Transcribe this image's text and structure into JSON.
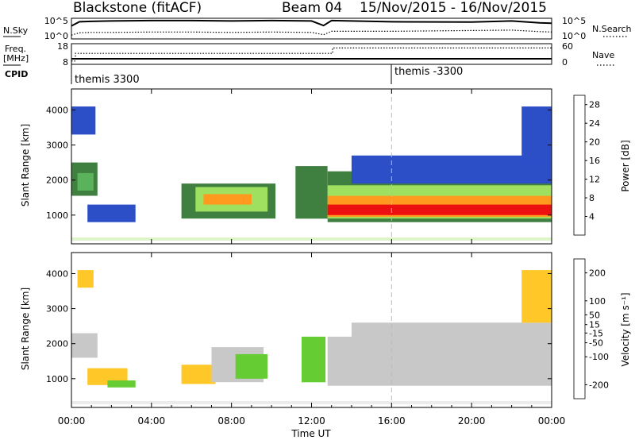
{
  "header": {
    "station": "Blackstone (fitACF)",
    "beam": "Beam 04",
    "dates": "15/Nov/2015 - 16/Nov/2015"
  },
  "labels": {
    "nsky": "N.Sky",
    "nsearch": "N.Search",
    "freq": "Freq.",
    "freq_unit": "[MHz]",
    "nave": "Nave",
    "cpid": "CPID",
    "xlabel": "Time UT",
    "ylabel": "Slant Range [km]",
    "power_label": "Power [dB]",
    "velocity_label": "Velocity [m s⁻¹]"
  },
  "noise_axis": {
    "left_ticks": [
      "10^5",
      "10^0"
    ],
    "right_ticks": [
      "10^5",
      "10^0"
    ]
  },
  "freq_axis": {
    "left_ticks": [
      "18",
      "8"
    ],
    "right_ticks": [
      "60",
      "0"
    ]
  },
  "cpid_segments": [
    {
      "label": "themis 3300",
      "start_hour": 0
    },
    {
      "label": "themis -3300",
      "start_hour": 16
    }
  ],
  "chart_data": [
    {
      "type": "line",
      "name": "noise",
      "x": [
        0,
        0.4,
        1,
        2,
        4,
        6,
        8,
        10,
        12,
        12.6,
        13,
        16,
        20,
        22,
        23.4,
        24
      ],
      "sky_log10": [
        3.2,
        4.3,
        4.4,
        4.5,
        4.6,
        4.6,
        4.5,
        4.6,
        4.5,
        3.3,
        4.6,
        4.3,
        4.2,
        4.5,
        4.0,
        3.9
      ],
      "search_log10": [
        0.8,
        1.4,
        1.5,
        1.5,
        1.6,
        1.6,
        1.5,
        1.6,
        1.5,
        0.9,
        1.8,
        1.8,
        2.0,
        2.1,
        1.7,
        1.6
      ],
      "ylim": [
        0,
        5
      ]
    },
    {
      "type": "line",
      "name": "freq-nave",
      "x": [
        0,
        0.2,
        13,
        13.05,
        24
      ],
      "freq_mhz": [
        10.5,
        10.5,
        10.5,
        10.5,
        10.5
      ],
      "nave": [
        8,
        32,
        32,
        49,
        49
      ],
      "freq_ylim": [
        8,
        18
      ],
      "nave_ylim": [
        0,
        60
      ]
    },
    {
      "type": "heatmap",
      "name": "power",
      "xlabel": "Time UT",
      "ylabel": "Slant Range [km]",
      "xlim": [
        0,
        24
      ],
      "ylim": [
        180,
        4600
      ],
      "x_ticks": [
        "00:00",
        "04:00",
        "08:00",
        "12:00",
        "16:00",
        "20:00",
        "00:00"
      ],
      "y_ticks": [
        1000,
        2000,
        3000,
        4000
      ],
      "colorbar": {
        "label": "Power [dB]",
        "ticks": [
          4,
          8,
          12,
          16,
          20,
          24,
          28
        ],
        "range": [
          0,
          30
        ],
        "colors": [
          "#0000ff",
          "#2c4fc8",
          "#3f7f3f",
          "#5ab25a",
          "#a0e060",
          "#ffd21e",
          "#ff9a1e",
          "#ff6010",
          "#ee1010"
        ]
      },
      "regions": [
        {
          "t0": 0.0,
          "t1": 1.3,
          "r0": 1550,
          "r1": 2500,
          "value": 8
        },
        {
          "t0": 0.3,
          "t1": 1.1,
          "r0": 1700,
          "r1": 2200,
          "value": 13
        },
        {
          "t0": 0.0,
          "t1": 1.2,
          "r0": 3300,
          "r1": 4100,
          "value": 5
        },
        {
          "t0": 0.8,
          "t1": 3.2,
          "r0": 800,
          "r1": 1300,
          "value": 5
        },
        {
          "t0": 5.5,
          "t1": 10.2,
          "r0": 900,
          "r1": 1900,
          "value": 7
        },
        {
          "t0": 6.2,
          "t1": 9.8,
          "r0": 1100,
          "r1": 1800,
          "value": 14
        },
        {
          "t0": 6.6,
          "t1": 9.0,
          "r0": 1300,
          "r1": 1600,
          "value": 20
        },
        {
          "t0": 11.2,
          "t1": 12.8,
          "r0": 900,
          "r1": 2400,
          "value": 8
        },
        {
          "t0": 12.8,
          "t1": 24.0,
          "r0": 800,
          "r1": 2250,
          "value": 9
        },
        {
          "t0": 12.8,
          "t1": 24.0,
          "r0": 900,
          "r1": 1850,
          "value": 15
        },
        {
          "t0": 12.8,
          "t1": 24.0,
          "r0": 950,
          "r1": 1550,
          "value": 21
        },
        {
          "t0": 12.8,
          "t1": 24.0,
          "r0": 1000,
          "r1": 1300,
          "value": 27
        },
        {
          "t0": 14.0,
          "t1": 24.0,
          "r0": 1900,
          "r1": 2700,
          "value": 6
        },
        {
          "t0": 22.5,
          "t1": 24.0,
          "r0": 2600,
          "r1": 4100,
          "value": 6
        }
      ]
    },
    {
      "type": "heatmap",
      "name": "velocity",
      "xlabel": "Time UT",
      "ylabel": "Slant Range [km]",
      "xlim": [
        0,
        24
      ],
      "ylim": [
        180,
        4600
      ],
      "x_ticks": [
        "00:00",
        "04:00",
        "08:00",
        "12:00",
        "16:00",
        "20:00",
        "00:00"
      ],
      "y_ticks": [
        1000,
        2000,
        3000,
        4000
      ],
      "colorbar": {
        "label": "Velocity [m s⁻¹]",
        "ticks": [
          200,
          100,
          50,
          15,
          -15,
          -50,
          -100,
          -200
        ],
        "range": [
          -250,
          250
        ],
        "colors": [
          "#ee1010",
          "#ff6010",
          "#ff9a1e",
          "#ffc828",
          "#c8c8c8",
          "#66cc33",
          "#2f8f4f",
          "#2c4fc8",
          "#1a2fb0"
        ]
      },
      "regions": [
        {
          "t0": 0.0,
          "t1": 1.3,
          "r0": 1600,
          "r1": 2300,
          "value": 0
        },
        {
          "t0": 0.3,
          "t1": 1.1,
          "r0": 3600,
          "r1": 4100,
          "value": -60
        },
        {
          "t0": 0.8,
          "t1": 2.8,
          "r0": 820,
          "r1": 1300,
          "value": -70
        },
        {
          "t0": 1.8,
          "t1": 3.2,
          "r0": 750,
          "r1": 950,
          "value": 30
        },
        {
          "t0": 5.5,
          "t1": 7.2,
          "r0": 850,
          "r1": 1400,
          "value": -80
        },
        {
          "t0": 7.0,
          "t1": 9.6,
          "r0": 900,
          "r1": 1900,
          "value": 0
        },
        {
          "t0": 8.2,
          "t1": 9.8,
          "r0": 1000,
          "r1": 1700,
          "value": 30
        },
        {
          "t0": 11.5,
          "t1": 12.7,
          "r0": 900,
          "r1": 2200,
          "value": 30
        },
        {
          "t0": 12.8,
          "t1": 24.0,
          "r0": 800,
          "r1": 2200,
          "value": 0
        },
        {
          "t0": 14.0,
          "t1": 24.0,
          "r0": 1900,
          "r1": 2600,
          "value": 0
        },
        {
          "t0": 22.5,
          "t1": 24.0,
          "r0": 2600,
          "r1": 4100,
          "value": -60
        }
      ]
    }
  ]
}
